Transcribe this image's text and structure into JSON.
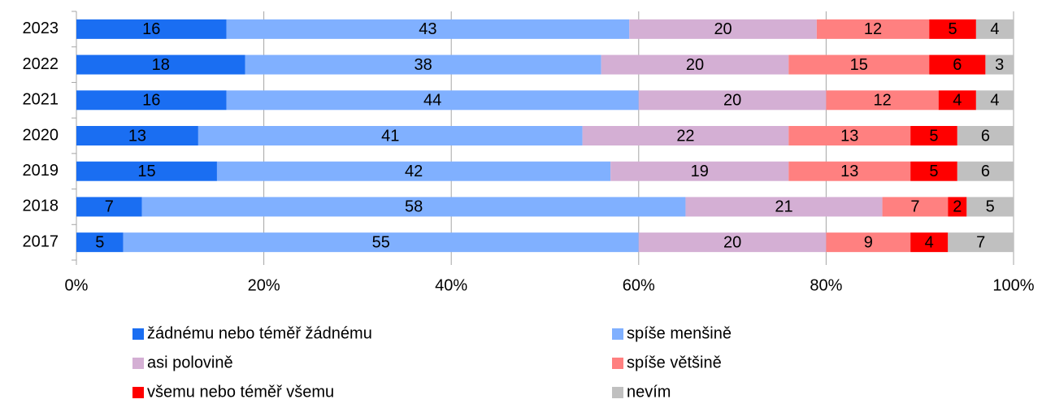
{
  "chart_data": {
    "type": "stacked-barh",
    "categories": [
      "2023",
      "2022",
      "2021",
      "2020",
      "2019",
      "2018",
      "2017"
    ],
    "series": [
      {
        "name": "žádnému nebo téměř žádnému",
        "color": "#1a6ef2",
        "values": [
          16,
          18,
          16,
          13,
          15,
          7,
          5
        ]
      },
      {
        "name": "spíše menšině",
        "color": "#80b0ff",
        "values": [
          43,
          38,
          44,
          41,
          42,
          58,
          55
        ]
      },
      {
        "name": "asi polovině",
        "color": "#d4afd4",
        "values": [
          20,
          20,
          20,
          22,
          19,
          21,
          20
        ]
      },
      {
        "name": "spíše většině",
        "color": "#ff8080",
        "values": [
          12,
          15,
          12,
          13,
          13,
          7,
          9
        ]
      },
      {
        "name": "všemu nebo téměř všemu",
        "color": "#ff0000",
        "values": [
          5,
          6,
          4,
          5,
          5,
          2,
          4
        ]
      },
      {
        "name": "nevím",
        "color": "#c0c0c0",
        "values": [
          4,
          3,
          4,
          6,
          6,
          5,
          7
        ]
      }
    ],
    "xlim": [
      0,
      100
    ],
    "xticks": [
      {
        "value": 0,
        "label": "0%"
      },
      {
        "value": 20,
        "label": "20%"
      },
      {
        "value": 40,
        "label": "40%"
      },
      {
        "value": 60,
        "label": "60%"
      },
      {
        "value": 80,
        "label": "80%"
      },
      {
        "value": 100,
        "label": "100%"
      }
    ],
    "grid": true,
    "legend": "bottom"
  }
}
